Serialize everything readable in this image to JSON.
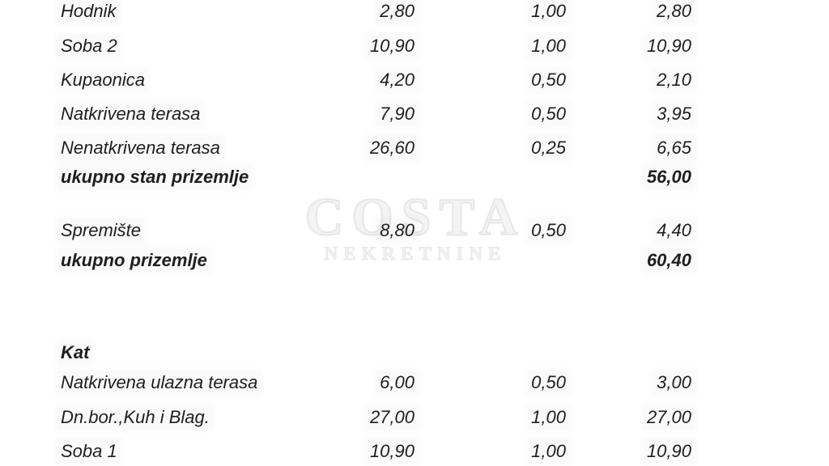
{
  "document": {
    "watermark": {
      "line1": "COSTA",
      "line2": "NEKRETNINE"
    },
    "table": {
      "rows": [
        {
          "label": "Hodnik",
          "area": "2,80",
          "coef": "1,00",
          "total": "2,80"
        },
        {
          "label": "Soba 2",
          "area": "10,90",
          "coef": "1,00",
          "total": "10,90"
        },
        {
          "label": "Kupaonica",
          "area": "4,20",
          "coef": "0,50",
          "total": "2,10"
        },
        {
          "label": "Natkrivena terasa",
          "area": "7,90",
          "coef": "0,50",
          "total": "3,95"
        },
        {
          "label": "Nenatkrivena terasa",
          "area": "26,60",
          "coef": "0,25",
          "total": "6,65"
        },
        {
          "label": "ukupno stan prizemlje",
          "area": "",
          "coef": "",
          "total": "56,00"
        },
        {
          "label": "Spremište",
          "area": "8,80",
          "coef": "0,50",
          "total": "4,40"
        },
        {
          "label": "ukupno prizemlje",
          "area": "",
          "coef": "",
          "total": "60,40"
        },
        {
          "label": "Kat",
          "area": "",
          "coef": "",
          "total": ""
        },
        {
          "label": "Natkrivena ulazna terasa",
          "area": "6,00",
          "coef": "0,50",
          "total": "3,00"
        },
        {
          "label": "Dn.bor.,Kuh i Blag.",
          "area": "27,00",
          "coef": "1,00",
          "total": "27,00"
        },
        {
          "label": "Soba 1",
          "area": "10,90",
          "coef": "1,00",
          "total": "10,90"
        }
      ]
    }
  }
}
